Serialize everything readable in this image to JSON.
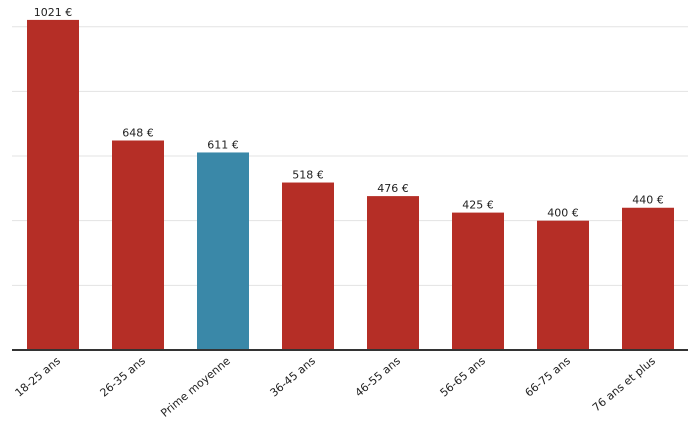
{
  "chart_data": {
    "type": "bar",
    "categories": [
      "18-25 ans",
      "26-35 ans",
      "Prime moyenne",
      "36-45 ans",
      "46-55 ans",
      "56-65 ans",
      "66-75 ans",
      "76 ans et plus"
    ],
    "values": [
      1021,
      648,
      611,
      518,
      476,
      425,
      400,
      440
    ],
    "value_labels": [
      "1021 €",
      "648 €",
      "611 €",
      "518 €",
      "476 €",
      "425 €",
      "400 €",
      "440 €"
    ],
    "highlight_index": 2,
    "ylim": [
      0,
      1100
    ],
    "grid": true,
    "gridline_values": [
      200,
      400,
      600,
      800,
      1000
    ],
    "colors": {
      "bar": "#b52e26",
      "highlight": "#3a88a8",
      "grid": "#e3e3e3",
      "axis": "#333333"
    },
    "title": "",
    "xlabel": "",
    "ylabel": ""
  }
}
